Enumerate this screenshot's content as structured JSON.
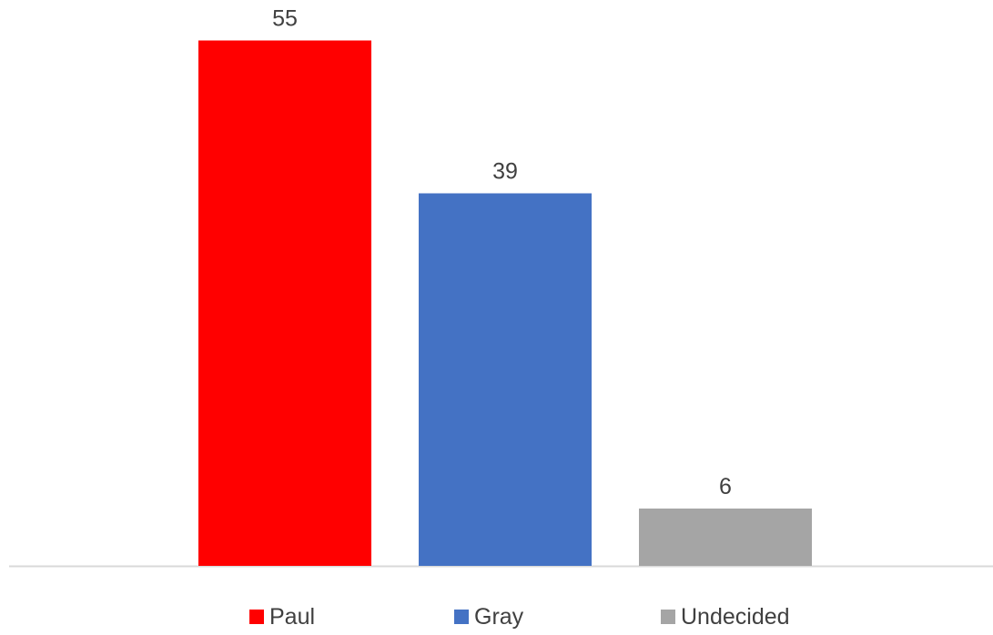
{
  "chart_data": {
    "type": "bar",
    "categories": [
      "Paul",
      "Gray",
      "Undecided"
    ],
    "values": [
      55,
      39,
      6
    ],
    "colors": [
      "#ff0000",
      "#4472c4",
      "#a5a5a5"
    ],
    "data_labels": [
      "55",
      "39",
      "6"
    ],
    "legend": [
      "Paul",
      "Gray",
      "Undecided"
    ],
    "legend_position": "bottom",
    "axis_color": "#d9d9d9",
    "grid": false
  }
}
